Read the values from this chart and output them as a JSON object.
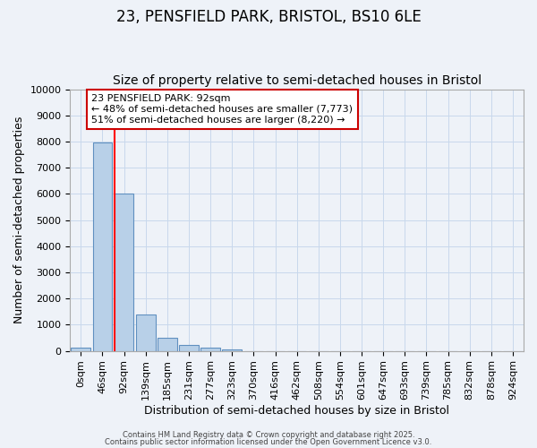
{
  "title": "23, PENSFIELD PARK, BRISTOL, BS10 6LE",
  "subtitle": "Size of property relative to semi-detached houses in Bristol",
  "xlabel": "Distribution of semi-detached houses by size in Bristol",
  "ylabel": "Number of semi-detached properties",
  "bar_labels": [
    "0sqm",
    "46sqm",
    "92sqm",
    "139sqm",
    "185sqm",
    "231sqm",
    "277sqm",
    "323sqm",
    "370sqm",
    "416sqm",
    "462sqm",
    "508sqm",
    "554sqm",
    "601sqm",
    "647sqm",
    "693sqm",
    "739sqm",
    "785sqm",
    "832sqm",
    "878sqm",
    "924sqm"
  ],
  "bar_values": [
    130,
    7950,
    6000,
    1400,
    500,
    210,
    110,
    60,
    0,
    0,
    0,
    0,
    0,
    0,
    0,
    0,
    0,
    0,
    0,
    0,
    0
  ],
  "bar_color": "#b8d0e8",
  "bar_edge_color": "#6090c0",
  "red_line_index": 2,
  "annotation_title": "23 PENSFIELD PARK: 92sqm",
  "annotation_line1": "← 48% of semi-detached houses are smaller (7,773)",
  "annotation_line2": "51% of semi-detached houses are larger (8,220) →",
  "annotation_box_facecolor": "#ffffff",
  "annotation_box_edgecolor": "#cc0000",
  "ylim": [
    0,
    10000
  ],
  "yticks": [
    0,
    1000,
    2000,
    3000,
    4000,
    5000,
    6000,
    7000,
    8000,
    9000,
    10000
  ],
  "footer1": "Contains HM Land Registry data © Crown copyright and database right 2025.",
  "footer2": "Contains public sector information licensed under the Open Government Licence v3.0.",
  "title_fontsize": 12,
  "subtitle_fontsize": 10,
  "axis_label_fontsize": 9,
  "tick_fontsize": 8,
  "annotation_fontsize": 8,
  "footer_fontsize": 6,
  "grid_color": "#c8d8ec",
  "background_color": "#eef2f8"
}
